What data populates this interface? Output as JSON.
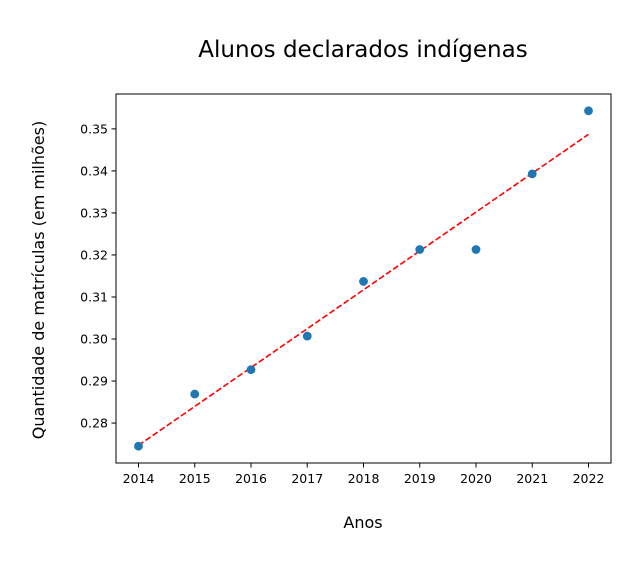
{
  "chart_data": {
    "type": "scatter",
    "title": "Alunos declarados indígenas",
    "xlabel": "Anos",
    "ylabel": "Quantidade de matrículas (em milhões)",
    "x": [
      2014,
      2015,
      2016,
      2017,
      2018,
      2019,
      2020,
      2021,
      2022
    ],
    "y": [
      0.2745,
      0.2869,
      0.2927,
      0.3007,
      0.3137,
      0.3213,
      0.3213,
      0.3393,
      0.3543
    ],
    "trendline": {
      "style": "dashed",
      "color": "#ff0000",
      "x": [
        2014,
        2022
      ],
      "y": [
        0.2747,
        0.3487
      ]
    },
    "x_ticks": [
      "2014",
      "2015",
      "2016",
      "2017",
      "2018",
      "2019",
      "2020",
      "2021",
      "2022"
    ],
    "y_ticks": [
      "0.28",
      "0.29",
      "0.30",
      "0.31",
      "0.32",
      "0.33",
      "0.34",
      "0.35"
    ],
    "y_tick_values": [
      0.28,
      0.29,
      0.3,
      0.31,
      0.32,
      0.33,
      0.34,
      0.35
    ],
    "xlim": [
      2013.6,
      2022.4
    ],
    "ylim": [
      0.2705,
      0.3583
    ],
    "grid": false,
    "marker_color": "#1f77b4"
  }
}
